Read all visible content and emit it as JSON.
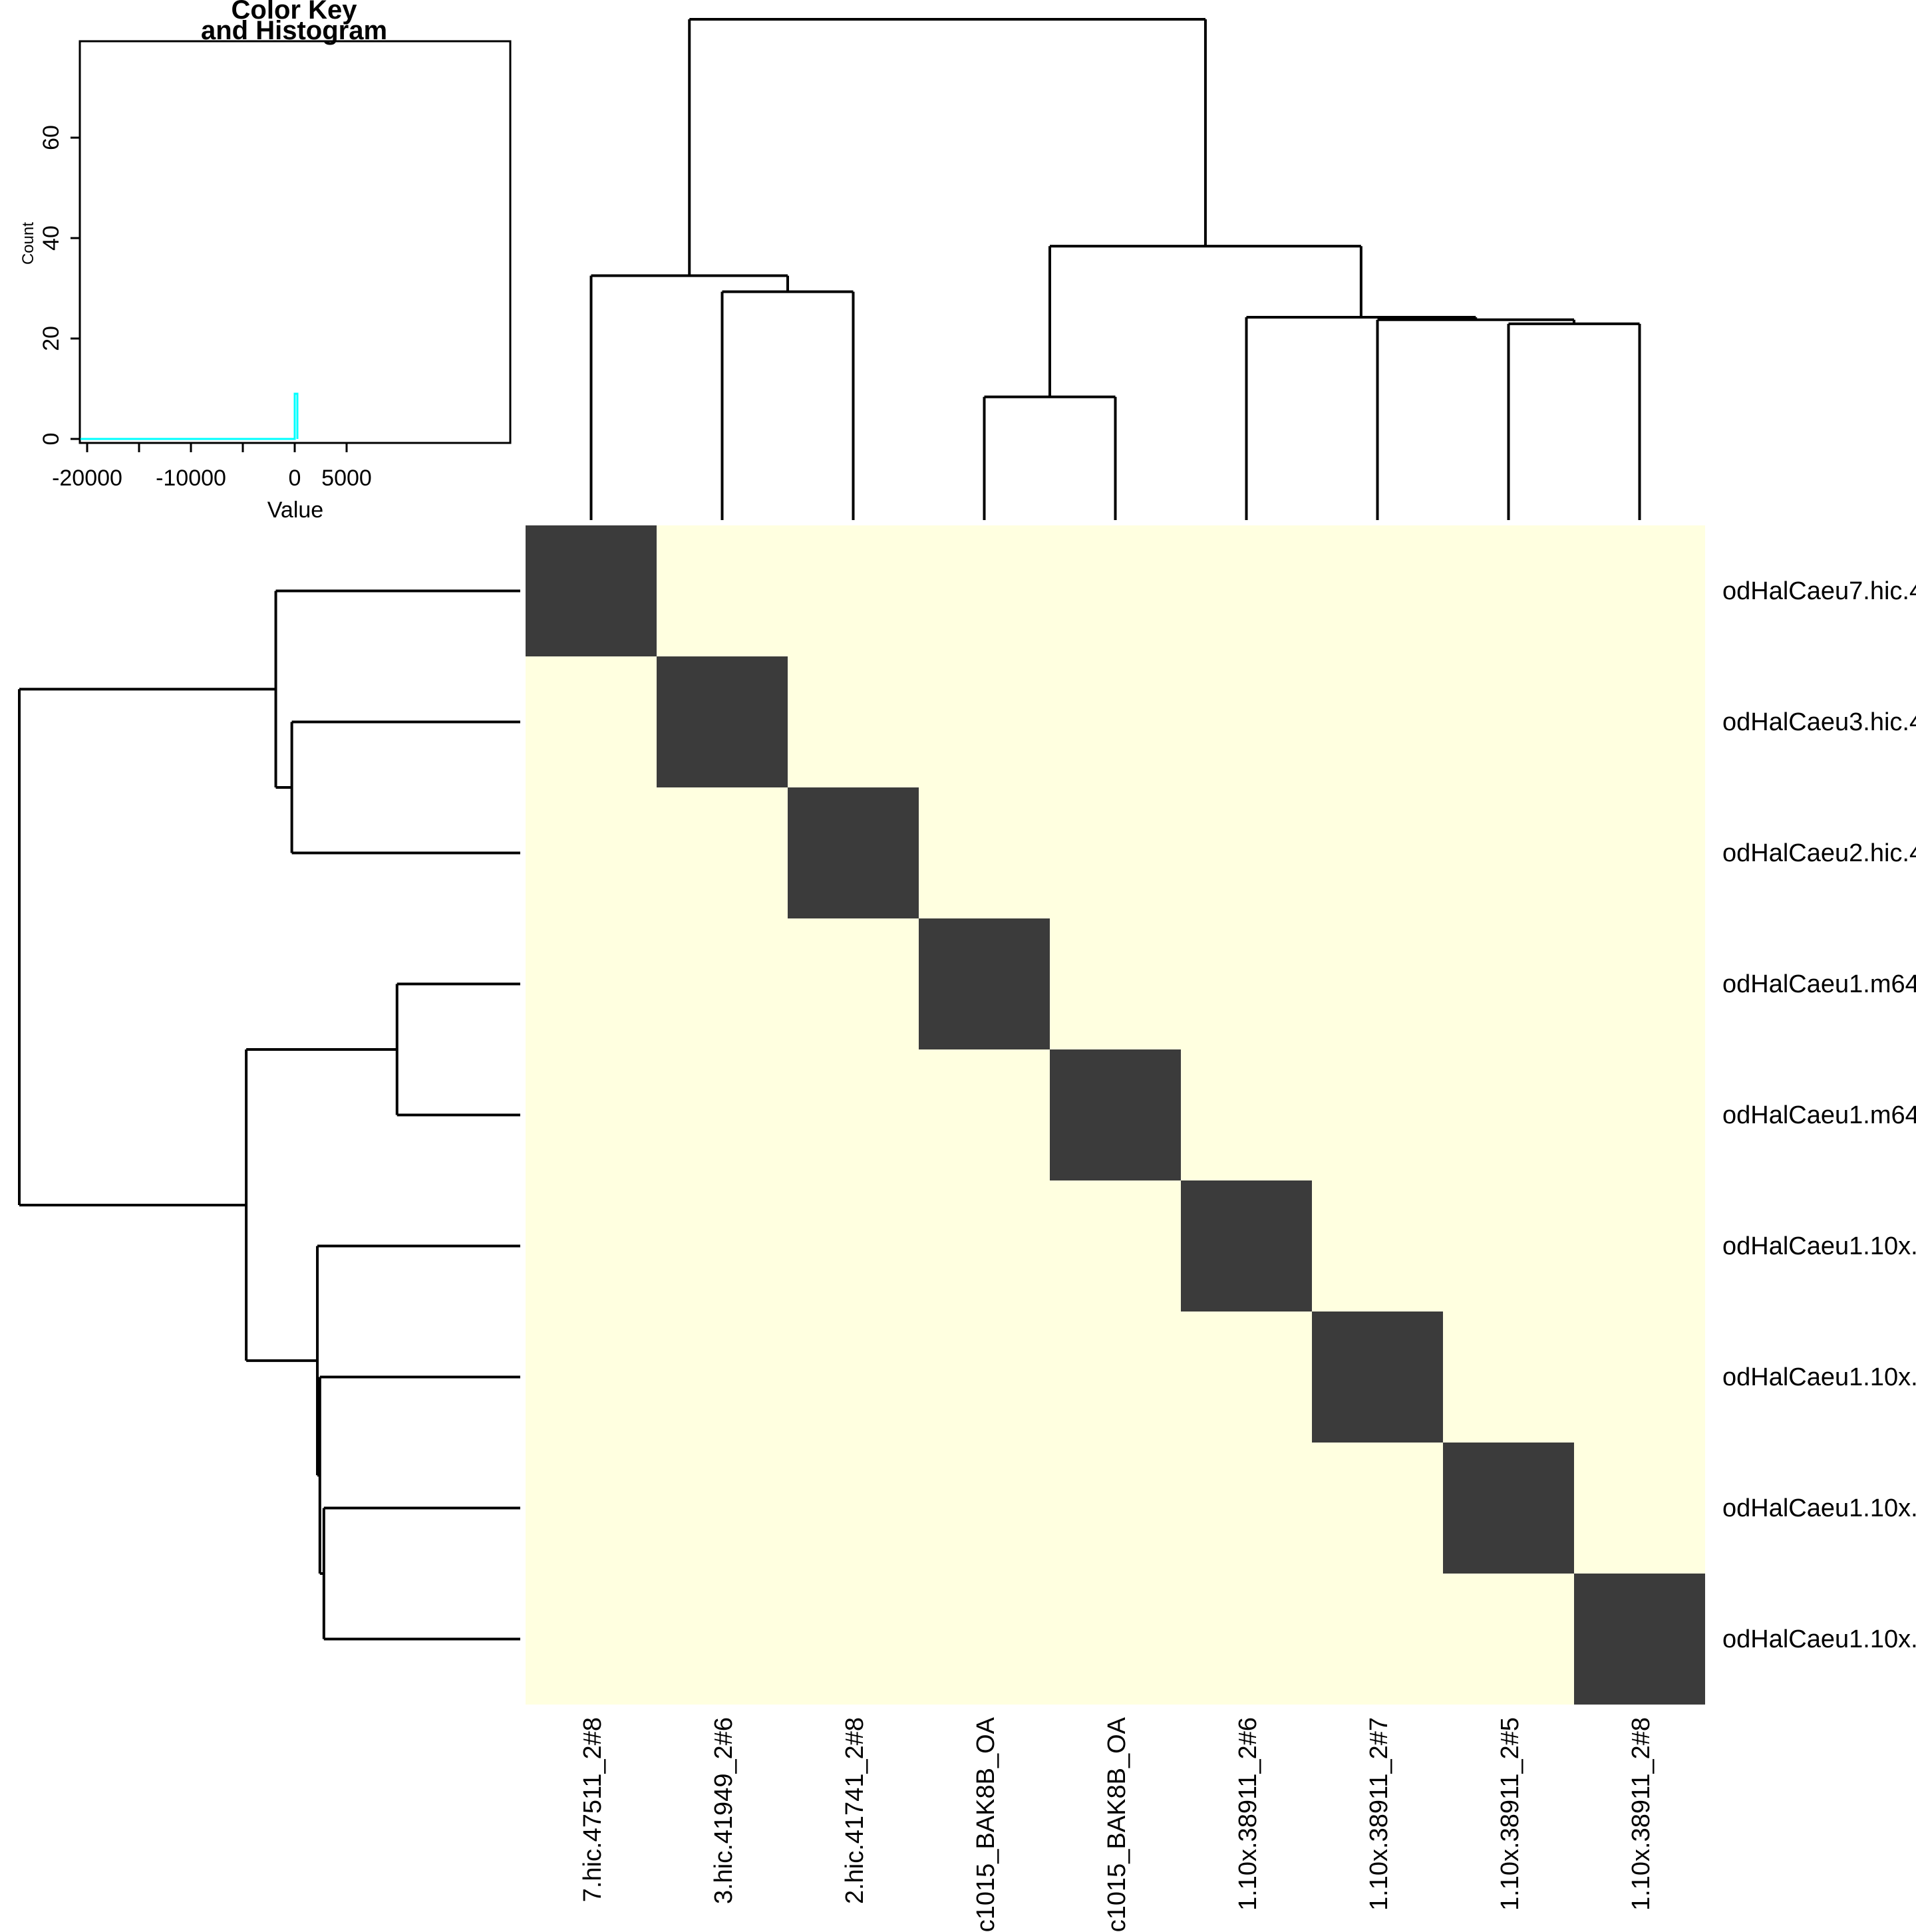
{
  "colors": {
    "background": "#ffffff",
    "heatmap_background": "#FFFFE0",
    "diagonal_block": "#3B3B3B",
    "histogram_line": "#00FFFF",
    "line": "#000000"
  },
  "color_key": {
    "title_line1": "Color Key",
    "title_line2": "and Histogram",
    "xlabel": "Value",
    "ylabel": "Count",
    "x_tick_values": [
      -20000,
      -15000,
      -10000,
      -5000,
      0,
      5000
    ],
    "x_labeled_ticks": [
      {
        "value": -20000,
        "label": "-20000"
      },
      {
        "value": -10000,
        "label": "-10000"
      },
      {
        "value": 0,
        "label": "0"
      },
      {
        "value": 5000,
        "label": "5000"
      }
    ],
    "y_tick_values": [
      0,
      20,
      40,
      60
    ],
    "y_tick_labels": [
      "0",
      "20",
      "40",
      "60"
    ],
    "ylim": [
      0,
      79
    ],
    "histogram": {
      "flat_from_value": -21000,
      "flat_to_value": 0,
      "flat_count": 0,
      "spike_value": 0,
      "spike_count": 9
    }
  },
  "heatmap": {
    "n": 9,
    "row_labels": [
      "odHalCaeu7.hic.4",
      "odHalCaeu3.hic.4",
      "odHalCaeu2.hic.4",
      "odHalCaeu1.m64",
      "odHalCaeu1.m64",
      "odHalCaeu1.10x.",
      "odHalCaeu1.10x.",
      "odHalCaeu1.10x.",
      "odHalCaeu1.10x."
    ],
    "col_labels": [
      "7.hic.47511_2#8",
      "3.hic.41949_2#6",
      "2.hic.41741_2#8",
      "c1015_BAK8B_OA",
      "c1015_BAK8B_OA",
      "1.10x.38911_2#6",
      "1.10x.38911_2#7",
      "1.10x.38911_2#5",
      "1.10x.38911_2#8"
    ],
    "matrix": [
      [
        1,
        0,
        0,
        0,
        0,
        0,
        0,
        0,
        0
      ],
      [
        0,
        1,
        0,
        0,
        0,
        0,
        0,
        0,
        0
      ],
      [
        0,
        0,
        1,
        0,
        0,
        0,
        0,
        0,
        0
      ],
      [
        0,
        0,
        0,
        1,
        0,
        0,
        0,
        0,
        0
      ],
      [
        0,
        0,
        0,
        0,
        1,
        0,
        0,
        0,
        0
      ],
      [
        0,
        0,
        0,
        0,
        0,
        1,
        0,
        0,
        0
      ],
      [
        0,
        0,
        0,
        0,
        0,
        0,
        1,
        0,
        0
      ],
      [
        0,
        0,
        0,
        0,
        0,
        0,
        0,
        1,
        0
      ],
      [
        0,
        0,
        0,
        0,
        0,
        0,
        0,
        0,
        1
      ]
    ]
  },
  "dendrogram": {
    "note": "identical topology for rows and columns; h = merge height fraction of root height",
    "tree": {
      "h": 1.0,
      "c": [
        {
          "h": 0.488,
          "c": [
            {
              "leaf": 0
            },
            {
              "h": 0.456,
              "c": [
                {
                  "leaf": 1
                },
                {
                  "leaf": 2
                }
              ]
            }
          ]
        },
        {
          "h": 0.547,
          "c": [
            {
              "h": 0.246,
              "c": [
                {
                  "leaf": 3
                },
                {
                  "leaf": 4
                }
              ]
            },
            {
              "h": 0.405,
              "c": [
                {
                  "leaf": 5
                },
                {
                  "h": 0.4,
                  "c": [
                    {
                      "leaf": 6
                    },
                    {
                      "h": 0.392,
                      "c": [
                        {
                          "leaf": 7
                        },
                        {
                          "leaf": 8
                        }
                      ]
                    }
                  ]
                }
              ]
            }
          ]
        }
      ]
    }
  },
  "chart_data": {
    "type": "heatmap",
    "title": "",
    "legend_position": "top-left color key",
    "grid": false,
    "rows": [
      "odHalCaeu7.hic.4",
      "odHalCaeu3.hic.4",
      "odHalCaeu2.hic.4",
      "odHalCaeu1.m64",
      "odHalCaeu1.m64",
      "odHalCaeu1.10x.",
      "odHalCaeu1.10x.",
      "odHalCaeu1.10x.",
      "odHalCaeu1.10x."
    ],
    "columns": [
      "7.hic.47511_2#8",
      "3.hic.41949_2#6",
      "2.hic.41741_2#8",
      "c1015_BAK8B_OA",
      "c1015_BAK8B_OA",
      "1.10x.38911_2#6",
      "1.10x.38911_2#7",
      "1.10x.38911_2#5",
      "1.10x.38911_2#8"
    ],
    "values": "diagonal cells = high (dark #3B3B3B), all off-diagonal cells = low (light #FFFFE0)",
    "matrix_diagonal": [
      1,
      1,
      1,
      1,
      1,
      1,
      1,
      1,
      1
    ],
    "color_key": {
      "title": "Color Key and Histogram",
      "xlabel": "Value",
      "ylabel": "Count",
      "x_tick_labels": [
        -20000,
        -10000,
        0,
        5000
      ],
      "y_ticks": [
        0,
        20,
        40,
        60
      ],
      "ylim": [
        0,
        79
      ],
      "histogram_series": {
        "color": "#00FFFF",
        "points": [
          {
            "value": -21000,
            "count": 0
          },
          {
            "value": 0,
            "count": 0
          },
          {
            "value": 0,
            "count": 9
          },
          {
            "value": 200,
            "count": 9
          },
          {
            "value": 200,
            "count": 0
          }
        ]
      }
    },
    "row_dendrogram_clusters": "((1,(2,3)),((4,5),(6,(7,(8,9)))))",
    "col_dendrogram_clusters": "((1,(2,3)),((4,5),(6,(7,(8,9)))))"
  }
}
